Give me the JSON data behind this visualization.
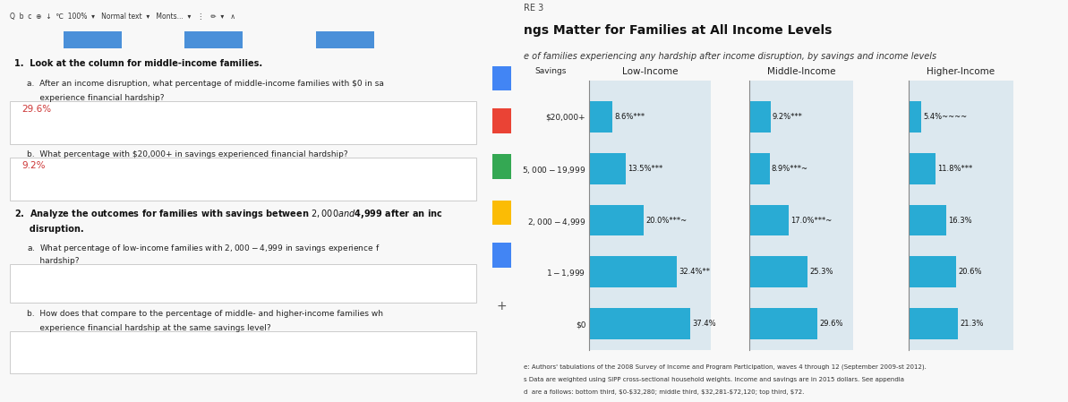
{
  "title": "ngs Matter for Families at All Income Levels",
  "subtitle": "e of families experiencing any hardship after income disruption, by savings and income levels",
  "figure3_label": "RE 3",
  "savings_labels": [
    "$20,000+",
    "$5,000-$19,999",
    "$2,000-$4,999",
    "$1-$1,999",
    "$0"
  ],
  "savings_axis_label": "Savings",
  "income_groups": [
    "Low-Income",
    "Middle-Income",
    "Higher-Income"
  ],
  "low_income": [
    8.6,
    13.5,
    20.0,
    32.4,
    37.4
  ],
  "middle_income": [
    9.2,
    8.9,
    17.0,
    25.3,
    29.6
  ],
  "higher_income": [
    5.4,
    11.8,
    16.3,
    20.6,
    21.3
  ],
  "low_income_labels": [
    "8.6%***",
    "13.5%***",
    "20.0%***~",
    "32.4%**",
    "37.4%"
  ],
  "middle_income_labels": [
    "9.2%***",
    "8.9%***~",
    "17.0%***~",
    "25.3%",
    "29.6%"
  ],
  "higher_income_labels": [
    "5.4%~~~~",
    "11.8%***",
    "16.3%",
    "20.6%",
    "21.3%"
  ],
  "bar_color": "#29ABD4",
  "note1": "e: Authors' tabulations of the 2008 Survey of Income and Program Participation, waves 4 through 12 (September 2009-st 2012).",
  "note2": "s Data are weighted using SIPP cross-sectional household weights. Income and savings are in 2015 dollars. See appendia",
  "note3": "d  are a follows: bottom third, $0-$32,280; middle third, $32,281-$72,120; top third, $72.",
  "toolbar_bg": "#f1f3f4",
  "left_bg": "#f8f8f8",
  "right_bg": "#d8d8d8",
  "answer_box_bg": "#ffffff",
  "answer_color": "#cc3333",
  "bar_height": 0.6,
  "xlim_max": 45
}
